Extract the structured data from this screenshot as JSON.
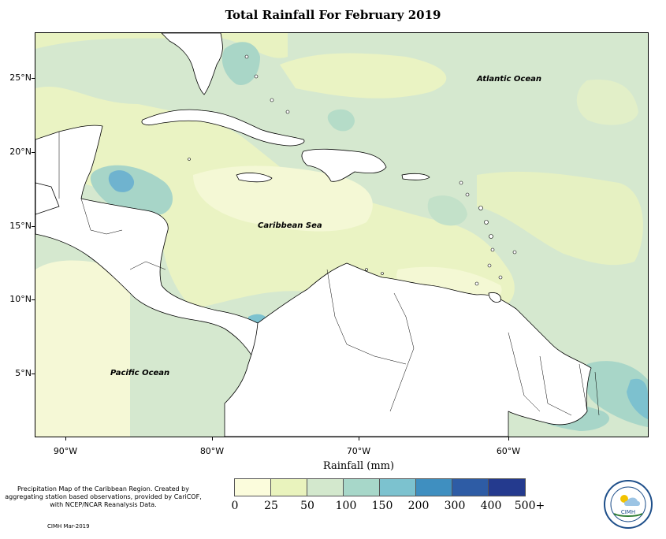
{
  "title": "Total Rainfall For February 2019",
  "map": {
    "lat_labels": [
      "25°N",
      "20°N",
      "15°N",
      "10°N",
      "5°N"
    ],
    "lon_labels": [
      "90°W",
      "80°W",
      "70°W",
      "60°W"
    ],
    "ocean_labels": {
      "atlantic": "Atlantic Ocean",
      "caribbean": "Caribbean Sea",
      "pacific": "Pacific Ocean"
    },
    "land_color": "#ffffff",
    "coastline_color": "#000000"
  },
  "legend": {
    "title": "Rainfall (mm)",
    "bins": [
      "0",
      "25",
      "50",
      "100",
      "150",
      "200",
      "300",
      "400",
      "500+"
    ],
    "colors": [
      "#fbfcdc",
      "#e9f3bd",
      "#d3e8cd",
      "#a7d7c9",
      "#7cc2cf",
      "#3f8fc0",
      "#2e5ca5",
      "#243a8e",
      "#0d1b52"
    ]
  },
  "notes": {
    "description": "Precipitation Map of the Caribbean Region. Created by aggregating station based observations, provided by CariCOF, with NCEP/NCAR Reanalysis Data.",
    "credit": "CIMH Mar-2019",
    "logo_text": "CIMH"
  }
}
